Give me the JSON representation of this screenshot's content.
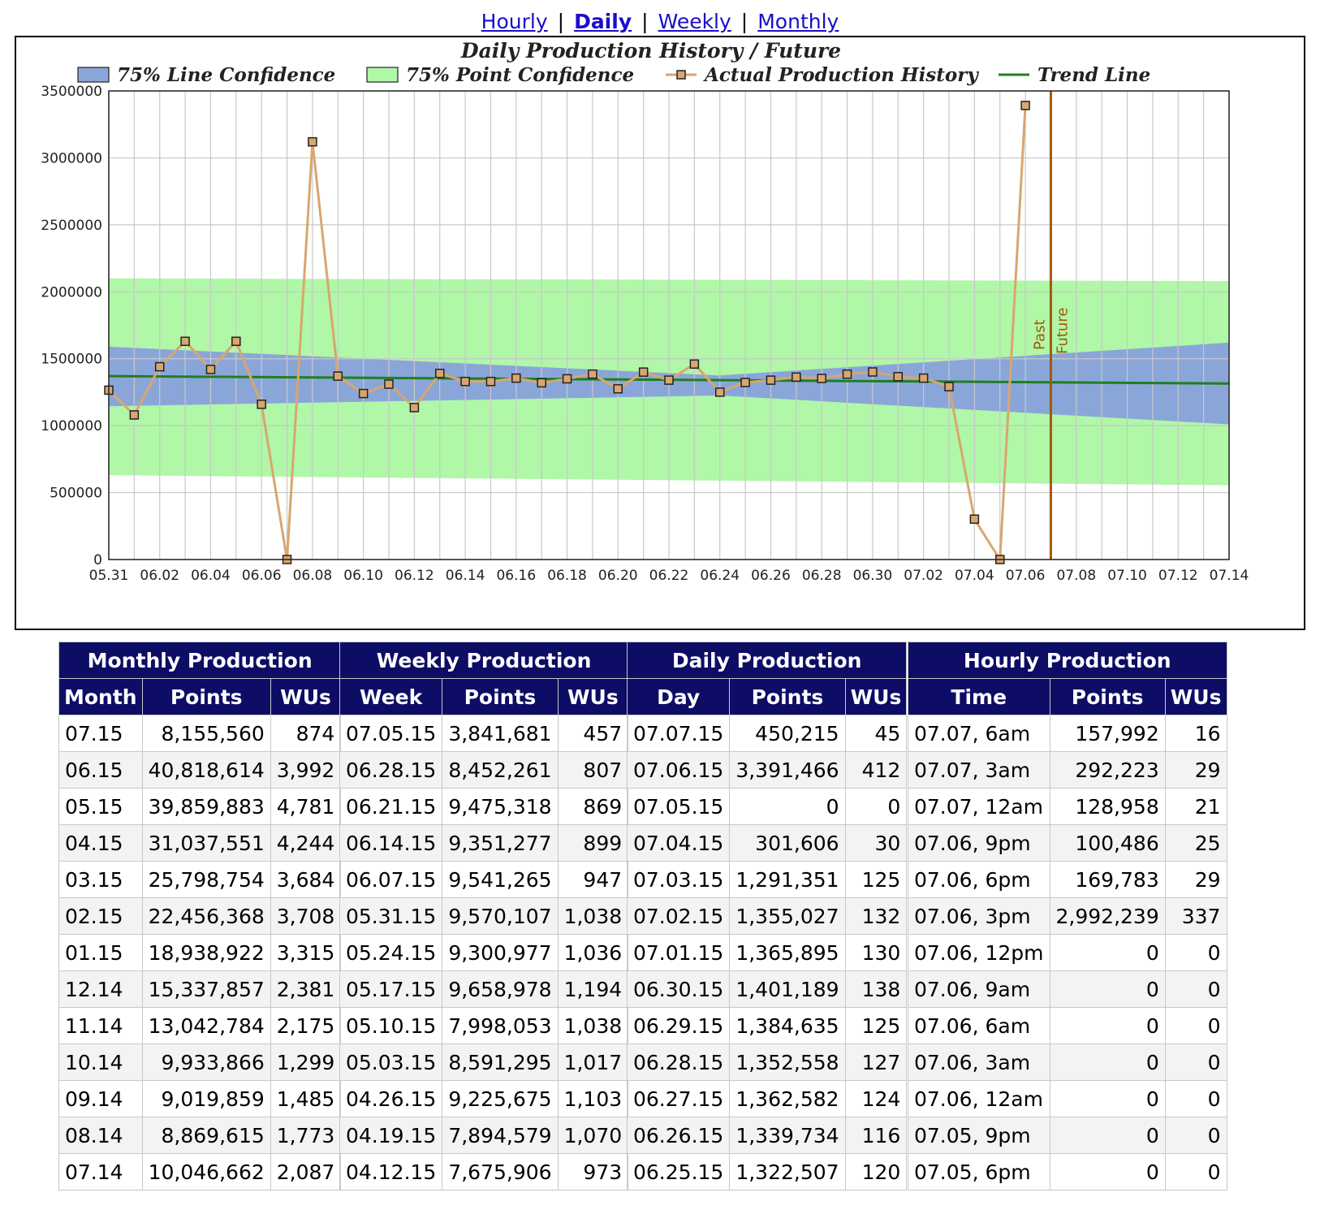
{
  "nav": {
    "links": [
      {
        "label": "Hourly",
        "active": false
      },
      {
        "label": "Daily",
        "active": true
      },
      {
        "label": "Weekly",
        "active": false
      },
      {
        "label": "Monthly",
        "active": false
      }
    ],
    "separator": "|"
  },
  "chart_data": {
    "type": "line",
    "title": "Daily Production History / Future",
    "legend": [
      "75% Line Confidence",
      "75% Point Confidence",
      "Actual Production History",
      "Trend Line"
    ],
    "legend_position": "top",
    "grid": true,
    "xlabel": "",
    "ylabel": "",
    "ylim": [
      0,
      3500000
    ],
    "yticks": [
      0,
      500000,
      1000000,
      1500000,
      2000000,
      2500000,
      3000000,
      3500000
    ],
    "x_ticks": [
      "05.31",
      "06.02",
      "06.04",
      "06.06",
      "06.08",
      "06.10",
      "06.12",
      "06.14",
      "06.16",
      "06.18",
      "06.20",
      "06.22",
      "06.24",
      "06.26",
      "06.28",
      "06.30",
      "07.02",
      "07.04",
      "07.06",
      "07.08",
      "07.10",
      "07.12",
      "07.14"
    ],
    "x_range": [
      "05.31",
      "07.14"
    ],
    "actual": [
      {
        "x": "05.31",
        "y": 1265000
      },
      {
        "x": "06.01",
        "y": 1080000
      },
      {
        "x": "06.02",
        "y": 1440000
      },
      {
        "x": "06.03",
        "y": 1630000
      },
      {
        "x": "06.04",
        "y": 1420000
      },
      {
        "x": "06.05",
        "y": 1630000
      },
      {
        "x": "06.06",
        "y": 1160000
      },
      {
        "x": "06.07",
        "y": 0
      },
      {
        "x": "06.08",
        "y": 3120000
      },
      {
        "x": "06.09",
        "y": 1370000
      },
      {
        "x": "06.10",
        "y": 1240000
      },
      {
        "x": "06.11",
        "y": 1310000
      },
      {
        "x": "06.12",
        "y": 1135000
      },
      {
        "x": "06.13",
        "y": 1390000
      },
      {
        "x": "06.14",
        "y": 1330000
      },
      {
        "x": "06.15",
        "y": 1330000
      },
      {
        "x": "06.16",
        "y": 1355000
      },
      {
        "x": "06.17",
        "y": 1320000
      },
      {
        "x": "06.18",
        "y": 1350000
      },
      {
        "x": "06.19",
        "y": 1385000
      },
      {
        "x": "06.20",
        "y": 1275000
      },
      {
        "x": "06.21",
        "y": 1400000
      },
      {
        "x": "06.22",
        "y": 1340000
      },
      {
        "x": "06.23",
        "y": 1460000
      },
      {
        "x": "06.24",
        "y": 1250000
      },
      {
        "x": "06.25",
        "y": 1322507
      },
      {
        "x": "06.26",
        "y": 1339734
      },
      {
        "x": "06.27",
        "y": 1362582
      },
      {
        "x": "06.28",
        "y": 1352558
      },
      {
        "x": "06.29",
        "y": 1384635
      },
      {
        "x": "06.30",
        "y": 1401189
      },
      {
        "x": "07.01",
        "y": 1365895
      },
      {
        "x": "07.02",
        "y": 1355027
      },
      {
        "x": "07.03",
        "y": 1291351
      },
      {
        "x": "07.04",
        "y": 301606
      },
      {
        "x": "07.05",
        "y": 0
      },
      {
        "x": "07.06",
        "y": 3391466
      }
    ],
    "trend_line": [
      {
        "x": "05.31",
        "y": 1370000
      },
      {
        "x": "07.14",
        "y": 1315000
      }
    ],
    "line_confidence": {
      "upper": [
        {
          "x": "05.31",
          "y": 1590000
        },
        {
          "x": "06.24",
          "y": 1375000
        },
        {
          "x": "07.14",
          "y": 1620000
        }
      ],
      "lower": [
        {
          "x": "05.31",
          "y": 1145000
        },
        {
          "x": "06.24",
          "y": 1225000
        },
        {
          "x": "07.14",
          "y": 1010000
        }
      ]
    },
    "point_confidence": {
      "upper": [
        {
          "x": "05.31",
          "y": 2100000
        },
        {
          "x": "07.14",
          "y": 2080000
        }
      ],
      "lower": [
        {
          "x": "05.31",
          "y": 630000
        },
        {
          "x": "07.14",
          "y": 555000
        }
      ]
    },
    "marker_line": {
      "x": "07.07",
      "labels": [
        "Past",
        "Future"
      ]
    },
    "colors": {
      "actual": "#d9a66e",
      "trend": "#1f7f1f",
      "line_conf": "#8aa6d9",
      "point_conf": "#b0f7a8",
      "marker": "#a35a00",
      "grid": "#c8c8c8"
    }
  },
  "tables": [
    {
      "title": "Monthly Production",
      "columns": [
        "Month",
        "Points",
        "WUs"
      ],
      "rows": [
        [
          "07.15",
          "8,155,560",
          "874"
        ],
        [
          "06.15",
          "40,818,614",
          "3,992"
        ],
        [
          "05.15",
          "39,859,883",
          "4,781"
        ],
        [
          "04.15",
          "31,037,551",
          "4,244"
        ],
        [
          "03.15",
          "25,798,754",
          "3,684"
        ],
        [
          "02.15",
          "22,456,368",
          "3,708"
        ],
        [
          "01.15",
          "18,938,922",
          "3,315"
        ],
        [
          "12.14",
          "15,337,857",
          "2,381"
        ],
        [
          "11.14",
          "13,042,784",
          "2,175"
        ],
        [
          "10.14",
          "9,933,866",
          "1,299"
        ],
        [
          "09.14",
          "9,019,859",
          "1,485"
        ],
        [
          "08.14",
          "8,869,615",
          "1,773"
        ],
        [
          "07.14",
          "10,046,662",
          "2,087"
        ]
      ]
    },
    {
      "title": "Weekly Production",
      "columns": [
        "Week",
        "Points",
        "WUs"
      ],
      "rows": [
        [
          "07.05.15",
          "3,841,681",
          "457"
        ],
        [
          "06.28.15",
          "8,452,261",
          "807"
        ],
        [
          "06.21.15",
          "9,475,318",
          "869"
        ],
        [
          "06.14.15",
          "9,351,277",
          "899"
        ],
        [
          "06.07.15",
          "9,541,265",
          "947"
        ],
        [
          "05.31.15",
          "9,570,107",
          "1,038"
        ],
        [
          "05.24.15",
          "9,300,977",
          "1,036"
        ],
        [
          "05.17.15",
          "9,658,978",
          "1,194"
        ],
        [
          "05.10.15",
          "7,998,053",
          "1,038"
        ],
        [
          "05.03.15",
          "8,591,295",
          "1,017"
        ],
        [
          "04.26.15",
          "9,225,675",
          "1,103"
        ],
        [
          "04.19.15",
          "7,894,579",
          "1,070"
        ],
        [
          "04.12.15",
          "7,675,906",
          "973"
        ]
      ]
    },
    {
      "title": "Daily Production",
      "columns": [
        "Day",
        "Points",
        "WUs"
      ],
      "rows": [
        [
          "07.07.15",
          "450,215",
          "45"
        ],
        [
          "07.06.15",
          "3,391,466",
          "412"
        ],
        [
          "07.05.15",
          "0",
          "0"
        ],
        [
          "07.04.15",
          "301,606",
          "30"
        ],
        [
          "07.03.15",
          "1,291,351",
          "125"
        ],
        [
          "07.02.15",
          "1,355,027",
          "132"
        ],
        [
          "07.01.15",
          "1,365,895",
          "130"
        ],
        [
          "06.30.15",
          "1,401,189",
          "138"
        ],
        [
          "06.29.15",
          "1,384,635",
          "125"
        ],
        [
          "06.28.15",
          "1,352,558",
          "127"
        ],
        [
          "06.27.15",
          "1,362,582",
          "124"
        ],
        [
          "06.26.15",
          "1,339,734",
          "116"
        ],
        [
          "06.25.15",
          "1,322,507",
          "120"
        ]
      ]
    },
    {
      "title": "Hourly Production",
      "columns": [
        "Time",
        "Points",
        "WUs"
      ],
      "rows": [
        [
          "07.07, 6am",
          "157,992",
          "16"
        ],
        [
          "07.07, 3am",
          "292,223",
          "29"
        ],
        [
          "07.07, 12am",
          "128,958",
          "21"
        ],
        [
          "07.06, 9pm",
          "100,486",
          "25"
        ],
        [
          "07.06, 6pm",
          "169,783",
          "29"
        ],
        [
          "07.06, 3pm",
          "2,992,239",
          "337"
        ],
        [
          "07.06, 12pm",
          "0",
          "0"
        ],
        [
          "07.06, 9am",
          "0",
          "0"
        ],
        [
          "07.06, 6am",
          "0",
          "0"
        ],
        [
          "07.06, 3am",
          "0",
          "0"
        ],
        [
          "07.06, 12am",
          "0",
          "0"
        ],
        [
          "07.05, 9pm",
          "0",
          "0"
        ],
        [
          "07.05, 6pm",
          "0",
          "0"
        ]
      ]
    }
  ]
}
